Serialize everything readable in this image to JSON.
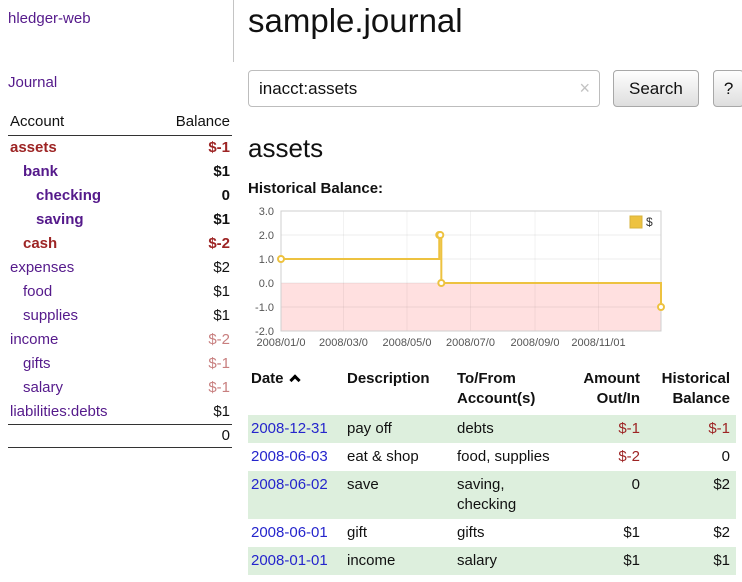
{
  "app": {
    "title": "hledger-web"
  },
  "sidebar": {
    "journal_label": "Journal",
    "accounts": {
      "headers": [
        "Account",
        "Balance"
      ],
      "rows": [
        {
          "name": "assets",
          "depth": 0,
          "bold": true,
          "name_color": "red",
          "balance": "$-1",
          "balance_color": "red"
        },
        {
          "name": "bank",
          "depth": 1,
          "bold": true,
          "name_color": "purple",
          "balance": "$1",
          "balance_color": "black"
        },
        {
          "name": "checking",
          "depth": 2,
          "bold": true,
          "name_color": "purple",
          "balance": "0",
          "balance_color": "black"
        },
        {
          "name": "saving",
          "depth": 2,
          "bold": true,
          "name_color": "purple",
          "balance": "$1",
          "balance_color": "black"
        },
        {
          "name": "cash",
          "depth": 1,
          "bold": true,
          "name_color": "red",
          "balance": "$-2",
          "balance_color": "red"
        },
        {
          "name": "expenses",
          "depth": 0,
          "bold": false,
          "name_color": "purple",
          "balance": "$2",
          "balance_color": "black"
        },
        {
          "name": "food",
          "depth": 1,
          "bold": false,
          "name_color": "purple",
          "balance": "$1",
          "balance_color": "black"
        },
        {
          "name": "supplies",
          "depth": 1,
          "bold": false,
          "name_color": "purple",
          "balance": "$1",
          "balance_color": "black"
        },
        {
          "name": "income",
          "depth": 0,
          "bold": false,
          "name_color": "purple",
          "balance": "$-2",
          "balance_color": "soft"
        },
        {
          "name": "gifts",
          "depth": 1,
          "bold": false,
          "name_color": "purple",
          "balance": "$-1",
          "balance_color": "soft"
        },
        {
          "name": "salary",
          "depth": 1,
          "bold": false,
          "name_color": "purple",
          "balance": "$-1",
          "balance_color": "soft"
        },
        {
          "name": "liabilities:debts",
          "depth": 0,
          "bold": false,
          "name_color": "purple",
          "balance": "$1",
          "balance_color": "black"
        }
      ],
      "total": "0"
    }
  },
  "main": {
    "title": "sample.journal",
    "search": {
      "value": "inacct:assets",
      "clear_icon": "×",
      "button_label": "Search",
      "help_label": "?"
    },
    "section_title": "assets",
    "register": {
      "headers": {
        "date": "Date",
        "description": "Description",
        "tofrom_line1": "To/From",
        "tofrom_line2": "Account(s)",
        "amount_line1": "Amount",
        "amount_line2": "Out/In",
        "balance_line1": "Historical",
        "balance_line2": "Balance"
      },
      "rows": [
        {
          "date": "2008-12-31",
          "description": "pay off",
          "accounts": "debts",
          "amount": "$-1",
          "amount_negative": true,
          "balance": "$-1",
          "balance_negative": true
        },
        {
          "date": "2008-06-03",
          "description": "eat & shop",
          "accounts": "food, supplies",
          "amount": "$-2",
          "amount_negative": true,
          "balance": "0",
          "balance_negative": false
        },
        {
          "date": "2008-06-02",
          "description": "save",
          "accounts": "saving, checking",
          "amount": "0",
          "amount_negative": false,
          "balance": "$2",
          "balance_negative": false
        },
        {
          "date": "2008-06-01",
          "description": "gift",
          "accounts": "gifts",
          "amount": "$1",
          "amount_negative": false,
          "balance": "$2",
          "balance_negative": false
        },
        {
          "date": "2008-01-01",
          "description": "income",
          "accounts": "salary",
          "amount": "$1",
          "amount_negative": false,
          "balance": "$1",
          "balance_negative": false
        }
      ]
    }
  },
  "chart_data": {
    "type": "line",
    "step": true,
    "title": "Historical Balance:",
    "series": [
      {
        "name": "$",
        "color": "#edc240",
        "points": [
          {
            "x": "2008-01-01",
            "y": 1
          },
          {
            "x": "2008-06-01",
            "y": 2
          },
          {
            "x": "2008-06-02",
            "y": 2
          },
          {
            "x": "2008-06-03",
            "y": 0
          },
          {
            "x": "2008-12-31",
            "y": -1
          }
        ]
      }
    ],
    "x_ticks": [
      {
        "x": "2008-01-01",
        "label": "2008/01/0"
      },
      {
        "x": "2008-03-01",
        "label": "2008/03/0"
      },
      {
        "x": "2008-05-01",
        "label": "2008/05/0"
      },
      {
        "x": "2008-07-01",
        "label": "2008/07/0"
      },
      {
        "x": "2008-09-01",
        "label": "2008/09/0"
      },
      {
        "x": "2008-11-01",
        "label": "2008/11/01"
      }
    ],
    "y_ticks": [
      3.0,
      2.0,
      1.0,
      0.0,
      -1.0,
      -2.0
    ],
    "ylim": [
      -2,
      3
    ],
    "xlim": [
      "2008-01-01",
      "2008-12-31"
    ],
    "below_zero_fill": "rgba(255,0,0,0.12)",
    "legend": {
      "label": "$",
      "swatch_color": "#edc240",
      "position": "top-right"
    },
    "grid": true,
    "xlabel": "",
    "ylabel": ""
  },
  "colors": {
    "accent_purple": "#551a8b",
    "negative_red": "#9d2424",
    "negative_soft_red": "#c87f7f",
    "date_link_blue": "#2525cc",
    "row_green": "#ddefdd",
    "chart_line_gold": "#edc240"
  }
}
